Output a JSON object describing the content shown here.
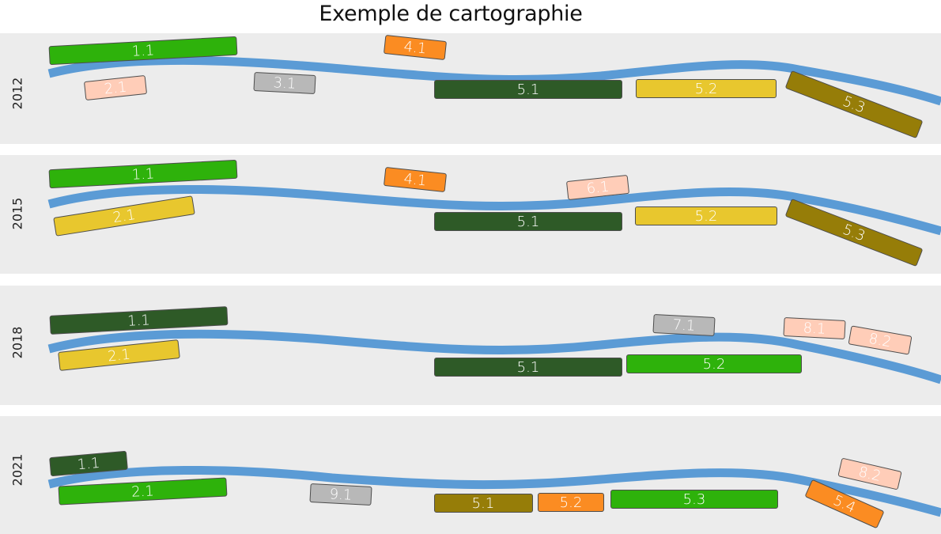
{
  "title": "Exemple de cartographie",
  "colors": {
    "panel_bg": "#ececec",
    "river": "#5b9bd5",
    "green": "#2eb20b",
    "dark_green": "#2e5a27",
    "orange": "#fb8c22",
    "peach": "#ffcdb8",
    "gray": "#b8b8b8",
    "yellow": "#e8c72e",
    "olive": "#967d08"
  },
  "panels": [
    {
      "year": "2012",
      "boxes": [
        {
          "label": "1.1",
          "color": "green"
        },
        {
          "label": "2.1",
          "color": "peach"
        },
        {
          "label": "3.1",
          "color": "gray"
        },
        {
          "label": "4.1",
          "color": "orange"
        },
        {
          "label": "5.1",
          "color": "dark_green"
        },
        {
          "label": "5.2",
          "color": "yellow"
        },
        {
          "label": "5.3",
          "color": "olive"
        }
      ]
    },
    {
      "year": "2015",
      "boxes": [
        {
          "label": "1.1",
          "color": "green"
        },
        {
          "label": "2.1",
          "color": "yellow"
        },
        {
          "label": "4.1",
          "color": "orange"
        },
        {
          "label": "6.1",
          "color": "peach"
        },
        {
          "label": "5.1",
          "color": "dark_green"
        },
        {
          "label": "5.2",
          "color": "yellow"
        },
        {
          "label": "5.3",
          "color": "olive"
        }
      ]
    },
    {
      "year": "2018",
      "boxes": [
        {
          "label": "1.1",
          "color": "dark_green"
        },
        {
          "label": "2.1",
          "color": "yellow"
        },
        {
          "label": "7.1",
          "color": "gray"
        },
        {
          "label": "8.1",
          "color": "peach"
        },
        {
          "label": "8.2",
          "color": "peach"
        },
        {
          "label": "5.1",
          "color": "dark_green"
        },
        {
          "label": "5.2",
          "color": "green"
        }
      ]
    },
    {
      "year": "2021",
      "boxes": [
        {
          "label": "1.1",
          "color": "dark_green"
        },
        {
          "label": "2.1",
          "color": "green"
        },
        {
          "label": "9.1",
          "color": "gray"
        },
        {
          "label": "5.1",
          "color": "olive"
        },
        {
          "label": "5.2",
          "color": "orange"
        },
        {
          "label": "5.3",
          "color": "green"
        },
        {
          "label": "5.4",
          "color": "orange"
        },
        {
          "label": "8.2",
          "color": "peach"
        }
      ]
    }
  ]
}
